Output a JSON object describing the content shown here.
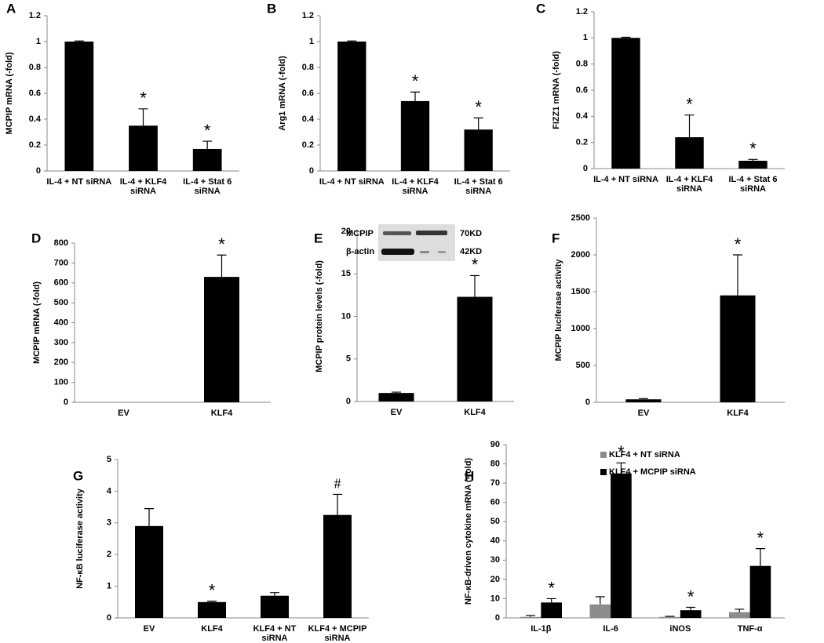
{
  "chart_data": [
    {
      "type": "bar",
      "panel": "A",
      "ylabel": "MCPIP  mRNA (-fold)",
      "categories": [
        [
          "IL-4 + NT siRNA"
        ],
        [
          "IL-4 + KLF4",
          "siRNA"
        ],
        [
          "IL-4 + Stat 6",
          "siRNA"
        ]
      ],
      "values": [
        1,
        0.35,
        0.17
      ],
      "errors": [
        0.005,
        0.13,
        0.06
      ],
      "markers": [
        null,
        "*",
        "*"
      ],
      "color": "#000000",
      "ylim": [
        0,
        1.2
      ],
      "yticks": [
        0,
        0.2,
        0.4,
        0.6,
        0.8,
        1,
        1.2
      ]
    },
    {
      "type": "bar",
      "panel": "B",
      "ylabel": "Arg1 mRNA (-fold)",
      "categories": [
        [
          "IL-4 + NT siRNA"
        ],
        [
          "IL-4 + KLF4",
          "siRNA"
        ],
        [
          "IL-4 + Stat 6",
          "siRNA"
        ]
      ],
      "values": [
        1,
        0.54,
        0.32
      ],
      "errors": [
        0.005,
        0.07,
        0.09
      ],
      "markers": [
        null,
        "*",
        "*"
      ],
      "color": "#000000",
      "ylim": [
        0,
        1.2
      ],
      "yticks": [
        0,
        0.2,
        0.4,
        0.6,
        0.8,
        1,
        1.2
      ]
    },
    {
      "type": "bar",
      "panel": "C",
      "ylabel": "FIZZ1  mRNA (-fold)",
      "categories": [
        [
          "IL-4 + NT siRNA"
        ],
        [
          "IL-4 + KLF4",
          "siRNA"
        ],
        [
          "IL-4 + Stat 6",
          "siRNA"
        ]
      ],
      "values": [
        1,
        0.24,
        0.06
      ],
      "errors": [
        0.005,
        0.17,
        0.01
      ],
      "markers": [
        null,
        "*",
        "*"
      ],
      "color": "#000000",
      "ylim": [
        0,
        1.2
      ],
      "yticks": [
        0,
        0.2,
        0.4,
        0.6,
        0.8,
        1,
        1.2
      ]
    },
    {
      "type": "bar",
      "panel": "D",
      "ylabel": "MCPIP  mRNA (-fold)",
      "categories": [
        [
          "EV"
        ],
        [
          "KLF4"
        ]
      ],
      "values": [
        0,
        630
      ],
      "errors": [
        0,
        110
      ],
      "markers": [
        null,
        "*"
      ],
      "color": "#000000",
      "ylim": [
        0,
        800
      ],
      "yticks": [
        0,
        100,
        200,
        300,
        400,
        500,
        600,
        700,
        800
      ]
    },
    {
      "type": "bar",
      "panel": "E",
      "ylabel": "MCPIP protein levels (-fold)",
      "categories": [
        [
          "EV"
        ],
        [
          "KLF4"
        ]
      ],
      "values": [
        1,
        12.3
      ],
      "errors": [
        0.1,
        2.5
      ],
      "markers": [
        null,
        "*"
      ],
      "color": "#000000",
      "ylim": [
        0,
        20
      ],
      "yticks": [
        0,
        5,
        10,
        15,
        20
      ],
      "inset": [
        {
          "label": "MCPIP",
          "size": "70KD"
        },
        {
          "label": "β-actin",
          "size": "42KD"
        }
      ]
    },
    {
      "type": "bar",
      "panel": "F",
      "ylabel": "MCPIP luciferase  activity",
      "categories": [
        [
          "EV"
        ],
        [
          "KLF4"
        ]
      ],
      "values": [
        40,
        1450
      ],
      "errors": [
        10,
        550
      ],
      "markers": [
        null,
        "*"
      ],
      "color": "#000000",
      "ylim": [
        0,
        2500
      ],
      "yticks": [
        0,
        500,
        1000,
        1500,
        2000,
        2500
      ]
    },
    {
      "type": "bar",
      "panel": "G",
      "ylabel": "NF-κB luciferase  activity",
      "categories": [
        [
          "EV"
        ],
        [
          "KLF4"
        ],
        [
          "KLF4 + NT",
          "siRNA"
        ],
        [
          "KLF4 + MCPIP",
          "siRNA"
        ]
      ],
      "values": [
        2.9,
        0.5,
        0.7,
        3.25
      ],
      "errors": [
        0.55,
        0.03,
        0.1,
        0.65
      ],
      "markers": [
        null,
        "*",
        null,
        "#"
      ],
      "color": "#000000",
      "ylim": [
        0,
        5
      ],
      "yticks": [
        0,
        1,
        2,
        3,
        4,
        5
      ]
    },
    {
      "type": "grouped-bar",
      "panel": "H",
      "ylabel": "NF-κB-driven cytokine mRNA (-fold)",
      "categories": [
        [
          "IL-1β"
        ],
        [
          "IL-6"
        ],
        [
          "iNOS"
        ],
        [
          "TNF-α"
        ]
      ],
      "ylim": [
        0,
        90
      ],
      "yticks": [
        0,
        10,
        20,
        30,
        40,
        50,
        60,
        70,
        80,
        90
      ],
      "series": [
        {
          "name": "KLF4 + NT siRNA",
          "color": "#8c8c8c",
          "values": [
            0.5,
            7,
            0.5,
            3
          ],
          "errors": [
            0.8,
            4,
            0.3,
            1.5
          ]
        },
        {
          "name": "KLF4 + MCPIP siRNA",
          "color": "#000000",
          "values": [
            8,
            75,
            4,
            27
          ],
          "errors": [
            2,
            5.5,
            1.5,
            9
          ],
          "markers": [
            "*",
            "*",
            "*",
            "*"
          ]
        }
      ]
    }
  ]
}
